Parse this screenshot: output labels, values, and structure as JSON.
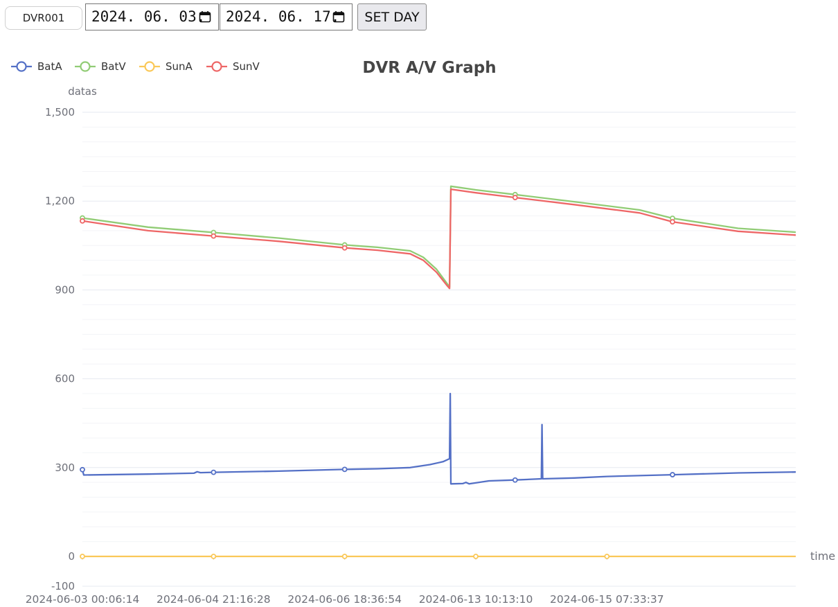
{
  "toolbar": {
    "device_value": "DVR001",
    "start_date": "2024. 06. 03.",
    "end_date": "2024. 06. 17.",
    "set_day_label": "SET DAY"
  },
  "chart_data": {
    "type": "line",
    "title": "DVR A/V Graph",
    "ylabel": "datas",
    "xlabel": "time",
    "ylim": [
      -100,
      1500
    ],
    "yticks": [
      -100,
      0,
      300,
      600,
      900,
      1200,
      1500
    ],
    "ytick_labels": [
      "-100",
      "0",
      "300",
      "600",
      "900",
      "1,200",
      "1,500"
    ],
    "x_categories": [
      "2024-06-03 00:06:14",
      "2024-06-04 21:16:28",
      "2024-06-06 18:36:54",
      "2024-06-13 10:13:10",
      "2024-06-15 07:33:37"
    ],
    "legend_position": "top-left",
    "grid": true,
    "series": [
      {
        "name": "BatA",
        "color": "#5470c6",
        "points": [
          [
            0,
            293
          ],
          [
            0.02,
            275
          ],
          [
            1,
            278
          ],
          [
            1.7,
            281
          ],
          [
            1.75,
            286
          ],
          [
            1.8,
            283
          ],
          [
            2,
            284
          ],
          [
            3,
            288
          ],
          [
            4,
            294
          ],
          [
            4.5,
            296
          ],
          [
            5,
            300
          ],
          [
            5.3,
            310
          ],
          [
            5.5,
            320
          ],
          [
            5.6,
            330
          ],
          [
            5.61,
            550
          ],
          [
            5.62,
            245
          ],
          [
            5.8,
            246
          ],
          [
            5.85,
            250
          ],
          [
            5.9,
            245
          ],
          [
            6.2,
            255
          ],
          [
            6.6,
            258
          ],
          [
            7.0,
            262
          ],
          [
            7.01,
            445
          ],
          [
            7.02,
            262
          ],
          [
            7.5,
            265
          ],
          [
            8,
            270
          ],
          [
            9,
            276
          ],
          [
            10,
            282
          ],
          [
            10.88,
            285
          ]
        ],
        "markers": [
          0,
          2,
          4,
          6.6,
          9
        ]
      },
      {
        "name": "BatV",
        "color": "#91cc75",
        "points": [
          [
            0,
            1143
          ],
          [
            1,
            1112
          ],
          [
            2,
            1094
          ],
          [
            3,
            1075
          ],
          [
            4,
            1052
          ],
          [
            4.5,
            1044
          ],
          [
            5,
            1032
          ],
          [
            5.2,
            1010
          ],
          [
            5.4,
            970
          ],
          [
            5.55,
            925
          ],
          [
            5.6,
            910
          ],
          [
            5.62,
            1250
          ],
          [
            6,
            1238
          ],
          [
            6.6,
            1222
          ],
          [
            7.5,
            1198
          ],
          [
            8.5,
            1170
          ],
          [
            9,
            1142
          ],
          [
            10,
            1108
          ],
          [
            10.88,
            1095
          ]
        ],
        "markers": [
          0,
          2,
          4,
          6.6,
          9
        ]
      },
      {
        "name": "SunA",
        "color": "#fac858",
        "points": [
          [
            0,
            0
          ],
          [
            10.88,
            0
          ]
        ],
        "markers": [
          0,
          2,
          4,
          6,
          8
        ]
      },
      {
        "name": "SunV",
        "color": "#ee6666",
        "points": [
          [
            0,
            1133
          ],
          [
            1,
            1100
          ],
          [
            2,
            1082
          ],
          [
            3,
            1064
          ],
          [
            4,
            1042
          ],
          [
            4.5,
            1034
          ],
          [
            5,
            1022
          ],
          [
            5.2,
            1000
          ],
          [
            5.4,
            960
          ],
          [
            5.55,
            918
          ],
          [
            5.6,
            905
          ],
          [
            5.62,
            1240
          ],
          [
            6,
            1228
          ],
          [
            6.6,
            1212
          ],
          [
            7.5,
            1188
          ],
          [
            8.5,
            1160
          ],
          [
            9,
            1130
          ],
          [
            10,
            1098
          ],
          [
            10.88,
            1085
          ]
        ],
        "markers": [
          0,
          2,
          4,
          6.6,
          9
        ]
      }
    ]
  }
}
